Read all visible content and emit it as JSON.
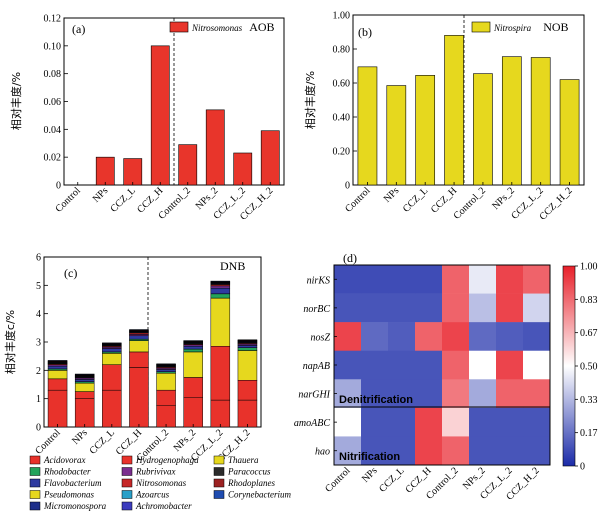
{
  "chart_data": [
    {
      "id": "a",
      "type": "bar",
      "panel_label": "(a)",
      "ylabel": "相对丰度/%",
      "ylim": [
        0,
        0.12
      ],
      "yticks": [
        0,
        0.02,
        0.04,
        0.06,
        0.08,
        0.1,
        0.12
      ],
      "ytick_labels": [
        "0",
        "0.02",
        "0.04",
        "0.06",
        "0.08",
        "0.10",
        "0.12"
      ],
      "categories": [
        "Control",
        "NPs",
        "CCZ_L",
        "CCZ_H",
        "Control_2",
        "NPs_2",
        "CCZ_L_2",
        "CCZ_H_2"
      ],
      "values": [
        0,
        0.02,
        0.019,
        0.1,
        0.029,
        0.054,
        0.023,
        0.039
      ],
      "legend": {
        "series_italic": "Nitrosomonas",
        "series_suffix": "AOB",
        "position": "top-right"
      },
      "color": "#e8352b"
    },
    {
      "id": "b",
      "type": "bar",
      "panel_label": "(b)",
      "ylabel": "相对丰度/%",
      "ylim": [
        0,
        1.0
      ],
      "yticks": [
        0,
        0.2,
        0.4,
        0.6,
        0.8,
        1.0
      ],
      "ytick_labels": [
        "0",
        "0.20",
        "0.40",
        "0.60",
        "0.80",
        "1.00"
      ],
      "categories": [
        "Control",
        "NPs",
        "CCZ_L",
        "CCZ_H",
        "Control_2",
        "NPs_2",
        "CCZ_L_2",
        "CCZ_H_2"
      ],
      "values": [
        0.695,
        0.585,
        0.645,
        0.88,
        0.655,
        0.755,
        0.75,
        0.62
      ],
      "legend": {
        "series_italic": "Nitrospira",
        "series_suffix": "NOB",
        "position": "top-right"
      },
      "color": "#e6d81e"
    },
    {
      "id": "c",
      "type": "stacked_bar",
      "panel_label": "(c)",
      "title": "DNB",
      "ylabel": "相对丰度c/%",
      "ylim": [
        0,
        6
      ],
      "yticks": [
        0,
        1,
        2,
        3,
        4,
        5,
        6
      ],
      "ytick_labels": [
        "0",
        "1",
        "2",
        "3",
        "4",
        "5",
        "6"
      ],
      "categories": [
        "Control",
        "NPs",
        "CCZ_L",
        "CCZ_H",
        "Control_2",
        "NPs_2",
        "CCZ_L_2",
        "CCZ_H_2"
      ],
      "series": [
        {
          "name": "Acidovorax",
          "color": "#e8322b",
          "values": [
            1.3,
            1.0,
            1.3,
            2.1,
            0.75,
            1.05,
            0.95,
            0.95
          ]
        },
        {
          "name": "Hydrogenophaga",
          "color": "#e8322b",
          "values": [
            0.4,
            0.25,
            0.9,
            0.55,
            0.55,
            0.7,
            1.9,
            0.7
          ]
        },
        {
          "name": "Thauera",
          "color": "#e6d81e",
          "values": [
            0,
            0,
            0,
            0,
            0,
            0,
            0,
            0
          ]
        },
        {
          "name": "Pseudomonas",
          "color": "#e6d81e",
          "values": [
            0.3,
            0.3,
            0.4,
            0.4,
            0.6,
            0.9,
            1.7,
            1.05
          ]
        },
        {
          "name": "Rhodobacter",
          "color": "#23a35a",
          "values": [
            0.05,
            0.05,
            0.05,
            0.05,
            0.05,
            0.1,
            0.15,
            0.1
          ]
        },
        {
          "name": "Flavobacterium",
          "color": "#2e3aa0",
          "values": [
            0.1,
            0.08,
            0.12,
            0.12,
            0.08,
            0.1,
            0.2,
            0.08
          ]
        },
        {
          "name": "Rubrivivax",
          "color": "#7a2e8e",
          "values": [
            0.05,
            0.05,
            0.05,
            0.05,
            0.05,
            0.05,
            0.08,
            0.05
          ]
        },
        {
          "name": "Nitrosomonas",
          "color": "#c62828",
          "values": [
            0.03,
            0.02,
            0.03,
            0.05,
            0.03,
            0.03,
            0.05,
            0.03
          ]
        },
        {
          "name": "Azoarcus",
          "color": "#2aa0c8",
          "values": [
            0.02,
            0.02,
            0.02,
            0.02,
            0.02,
            0.02,
            0.02,
            0.02
          ]
        },
        {
          "name": "Achromobacter",
          "color": "#3c3cbe",
          "values": [
            0.02,
            0.02,
            0.02,
            0.02,
            0.02,
            0.02,
            0.02,
            0.02
          ]
        },
        {
          "name": "Micromonospora",
          "color": "#1e2f8a",
          "values": [
            0.02,
            0.02,
            0.02,
            0.02,
            0.02,
            0.02,
            0.02,
            0.02
          ]
        },
        {
          "name": "Paracoccus",
          "color": "#2b2b2b",
          "values": [
            0.02,
            0.02,
            0.02,
            0.02,
            0.02,
            0.02,
            0.02,
            0.02
          ]
        },
        {
          "name": "Rhodoplanes",
          "color": "#9c2222",
          "values": [
            0.02,
            0.02,
            0.02,
            0.02,
            0.02,
            0.02,
            0.02,
            0.02
          ]
        },
        {
          "name": "Corynebacterium",
          "color": "#1f4cb0",
          "values": [
            0.02,
            0.02,
            0.02,
            0.02,
            0.02,
            0.02,
            0.02,
            0.02
          ]
        }
      ],
      "legend_order": [
        [
          "Acidovorax",
          "Hydrogenophaga",
          "Thauera"
        ],
        [
          "Rhodobacter",
          "Rubrivivax",
          "Paracoccus"
        ],
        [
          "Flavobacterium",
          "Nitrosomonas",
          "Rhodoplanes"
        ],
        [
          "Pseudomonas",
          "Azoarcus",
          "Corynebacterium"
        ],
        [
          "Micromonospora",
          "Achromobacter",
          ""
        ]
      ]
    },
    {
      "id": "d",
      "type": "heatmap",
      "panel_label": "(d)",
      "rows": [
        "nirKS",
        "norBC",
        "nosZ",
        "napAB",
        "narGHI",
        "amoABC",
        "hao"
      ],
      "columns": [
        "Control",
        "NPs",
        "CCZ_L",
        "CCZ_H",
        "Control_2",
        "NPs_2",
        "CCZ_L_2",
        "CCZ_H_2"
      ],
      "values": [
        [
          0.08,
          0.08,
          0.08,
          0.08,
          0.85,
          0.45,
          0.92,
          0.85
        ],
        [
          0.1,
          0.1,
          0.1,
          0.1,
          0.85,
          0.35,
          0.92,
          0.4
        ],
        [
          0.92,
          0.15,
          0.12,
          0.85,
          0.92,
          0.15,
          0.12,
          0.1
        ],
        [
          0.1,
          0.1,
          0.1,
          0.1,
          0.85,
          0.5,
          0.92,
          0.5
        ],
        [
          0.3,
          0.1,
          0.1,
          0.1,
          0.8,
          0.3,
          0.85,
          0.85
        ],
        [
          0.5,
          0.1,
          0.1,
          0.92,
          0.6,
          0.1,
          0.1,
          0.1
        ],
        [
          0.3,
          0.1,
          0.1,
          0.92,
          0.85,
          0.1,
          0.1,
          0.1
        ]
      ],
      "groups": [
        "Denitrification",
        "Nitrification"
      ],
      "colorbar": {
        "min": 0,
        "max": 1.0,
        "ticks": [
          "1.00",
          "0.83",
          "0.67",
          "0.50",
          "0.33",
          "0.17",
          "0"
        ],
        "low_color": "#1a2aa8",
        "mid_color": "#ffffff",
        "high_color": "#e8202a"
      }
    }
  ]
}
